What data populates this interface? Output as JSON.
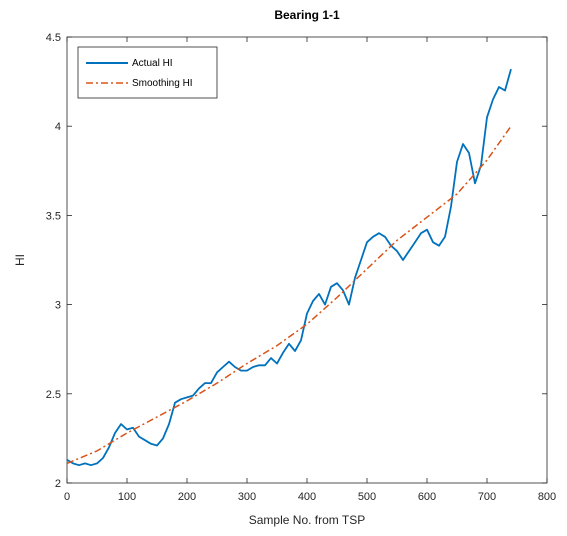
{
  "chart_data": {
    "type": "line",
    "title": "Bearing 1-1",
    "xlabel": "Sample No. from TSP",
    "ylabel": "HI",
    "xlim": [
      0,
      800
    ],
    "ylim": [
      2,
      4.5
    ],
    "xticks": [
      0,
      100,
      200,
      300,
      400,
      500,
      600,
      700,
      800
    ],
    "yticks": [
      2,
      2.5,
      3,
      3.5,
      4,
      4.5
    ],
    "grid": false,
    "legend_placement": "top-left",
    "series": [
      {
        "name": "Actual HI",
        "color": "#0072BD",
        "style": "solid",
        "x": [
          0,
          10,
          20,
          30,
          40,
          50,
          60,
          70,
          80,
          90,
          100,
          110,
          120,
          130,
          140,
          150,
          160,
          170,
          180,
          190,
          200,
          210,
          220,
          230,
          240,
          250,
          260,
          270,
          280,
          290,
          300,
          310,
          320,
          330,
          340,
          350,
          360,
          370,
          380,
          390,
          400,
          410,
          420,
          430,
          440,
          450,
          460,
          470,
          480,
          490,
          500,
          510,
          520,
          530,
          540,
          550,
          560,
          570,
          580,
          590,
          600,
          610,
          620,
          630,
          640,
          650,
          660,
          670,
          680,
          690,
          700,
          710,
          720,
          730,
          740
        ],
        "y": [
          2.13,
          2.11,
          2.1,
          2.11,
          2.1,
          2.11,
          2.14,
          2.2,
          2.28,
          2.33,
          2.3,
          2.31,
          2.26,
          2.24,
          2.22,
          2.21,
          2.25,
          2.33,
          2.45,
          2.47,
          2.48,
          2.49,
          2.53,
          2.56,
          2.56,
          2.62,
          2.65,
          2.68,
          2.65,
          2.63,
          2.63,
          2.65,
          2.66,
          2.66,
          2.7,
          2.67,
          2.73,
          2.78,
          2.74,
          2.8,
          2.95,
          3.02,
          3.06,
          3.0,
          3.1,
          3.12,
          3.08,
          3.0,
          3.15,
          3.25,
          3.35,
          3.38,
          3.4,
          3.38,
          3.33,
          3.3,
          3.25,
          3.3,
          3.35,
          3.4,
          3.42,
          3.35,
          3.33,
          3.38,
          3.55,
          3.8,
          3.9,
          3.85,
          3.68,
          3.78,
          4.05,
          4.15,
          4.22,
          4.2,
          4.32
        ]
      },
      {
        "name": "Smoothing HI",
        "color": "#D95319",
        "style": "dash-dot",
        "x": [
          0,
          50,
          100,
          150,
          200,
          250,
          300,
          350,
          400,
          450,
          500,
          550,
          600,
          650,
          700,
          740
        ],
        "y": [
          2.11,
          2.18,
          2.28,
          2.37,
          2.46,
          2.56,
          2.67,
          2.77,
          2.89,
          3.04,
          3.2,
          3.36,
          3.49,
          3.62,
          3.81,
          4.0
        ]
      }
    ]
  }
}
